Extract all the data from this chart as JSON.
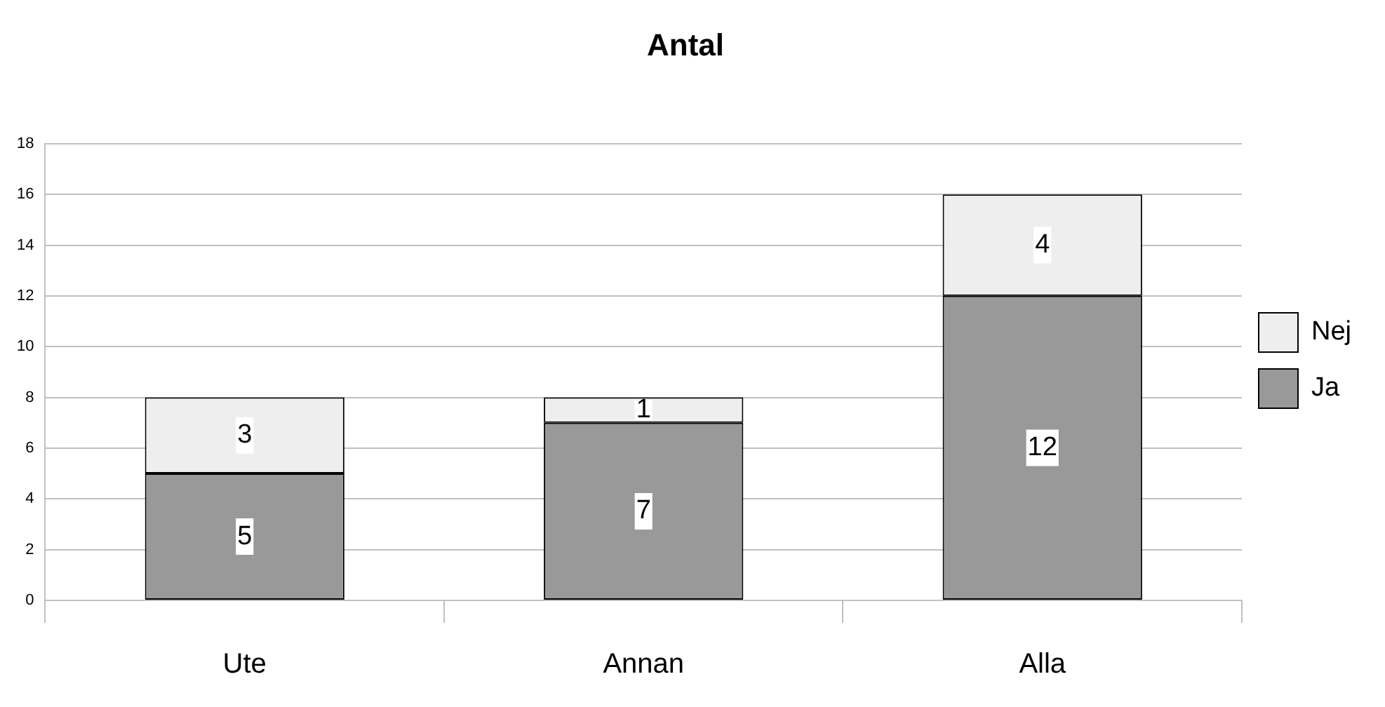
{
  "chart_data": {
    "type": "bar",
    "title": "Antal",
    "categories": [
      "Ute",
      "Annan",
      "Alla"
    ],
    "stacked": true,
    "series": [
      {
        "name": "Ja",
        "color": "#999999",
        "values": [
          5,
          7,
          12
        ]
      },
      {
        "name": "Nej",
        "color": "#eeeeee",
        "values": [
          3,
          1,
          4
        ]
      }
    ],
    "ylim": [
      0,
      18
    ],
    "yticks": [
      0,
      2,
      4,
      6,
      8,
      10,
      12,
      14,
      16,
      18
    ],
    "grid": "y",
    "legend": "right",
    "data_labels": true
  }
}
